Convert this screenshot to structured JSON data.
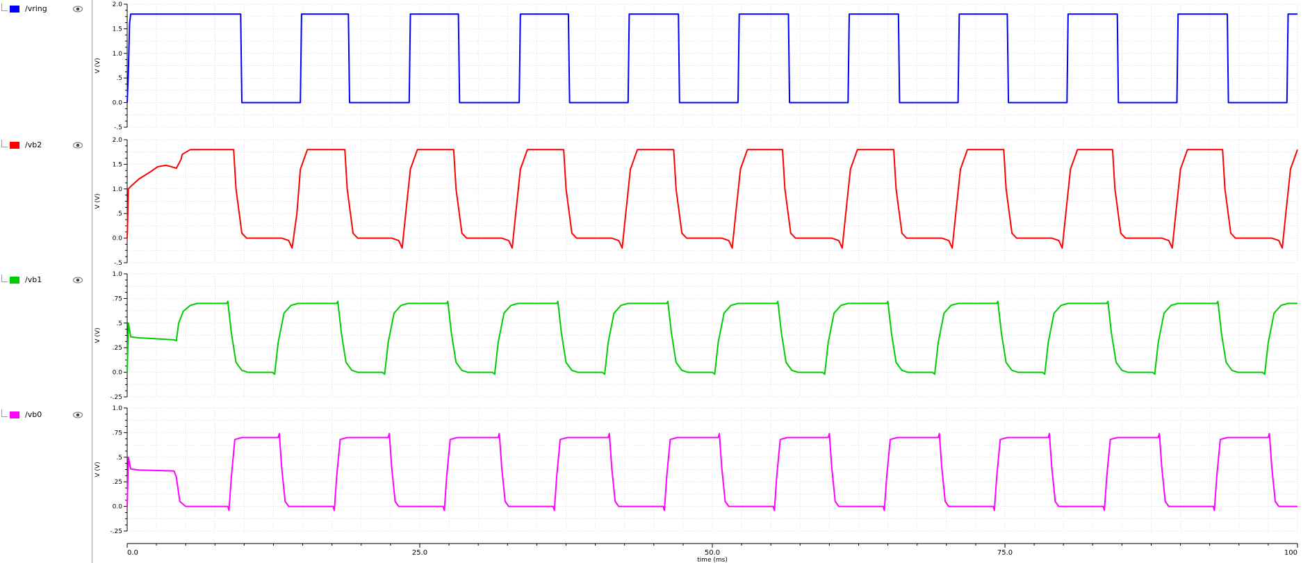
{
  "x_axis": {
    "label": "time (ms)",
    "ticks": [
      {
        "v": 0,
        "t": "0.0"
      },
      {
        "v": 25,
        "t": "25.0"
      },
      {
        "v": 50,
        "t": "50.0"
      },
      {
        "v": 75,
        "t": "75.0"
      },
      {
        "v": 100,
        "t": "100"
      }
    ]
  },
  "chart_data": [
    {
      "type": "line",
      "name": "/vring",
      "color": "#0000ff",
      "ylabel": "V (V)",
      "ylim": [
        -0.5,
        2.0
      ],
      "yticks": [
        {
          "v": 2.0,
          "t": "2.0"
        },
        {
          "v": 1.5,
          "t": "1.5"
        },
        {
          "v": 1.0,
          "t": "1.0"
        },
        {
          "v": 0.5,
          "t": ".5"
        },
        {
          "v": 0.0,
          "t": "0.0"
        },
        {
          "v": -0.5,
          "t": "-.5"
        }
      ],
      "xlim": [
        0,
        100
      ],
      "grid": true,
      "x": [
        0,
        0.1,
        0.2,
        0.3,
        0.5,
        9.7,
        9.8,
        14.8,
        14.9,
        18.9,
        19.0,
        24.1,
        24.2,
        28.3,
        28.4,
        33.5,
        33.6,
        37.7,
        37.8,
        42.8,
        42.9,
        47.1,
        47.2,
        52.2,
        52.3,
        56.5,
        56.6,
        61.6,
        61.7,
        65.9,
        66.0,
        71.0,
        71.1,
        75.2,
        75.3,
        80.3,
        80.4,
        84.6,
        84.7,
        89.7,
        89.8,
        94.0,
        94.1,
        99.1,
        99.2,
        100
      ],
      "y": [
        0.0,
        0.6,
        1.6,
        1.8,
        1.8,
        1.8,
        0.0,
        0.0,
        1.8,
        1.8,
        0.0,
        0.0,
        1.8,
        1.8,
        0.0,
        0.0,
        1.8,
        1.8,
        0.0,
        0.0,
        1.8,
        1.8,
        0.0,
        0.0,
        1.8,
        1.8,
        0.0,
        0.0,
        1.8,
        1.8,
        0.0,
        0.0,
        1.8,
        1.8,
        0.0,
        0.0,
        1.8,
        1.8,
        0.0,
        0.0,
        1.8,
        1.8,
        0.0,
        0.0,
        1.8,
        1.8
      ]
    },
    {
      "type": "line",
      "name": "/vb2",
      "color": "#ff0000",
      "ylabel": "V (V)",
      "ylim": [
        -0.5,
        2.0
      ],
      "yticks": [
        {
          "v": 2.0,
          "t": "2.0"
        },
        {
          "v": 1.5,
          "t": "1.5"
        },
        {
          "v": 1.0,
          "t": "1.0"
        },
        {
          "v": 0.5,
          "t": ".5"
        },
        {
          "v": 0.0,
          "t": "0.0"
        },
        {
          "v": -0.5,
          "t": "-.5"
        }
      ],
      "xlim": [
        0,
        100
      ],
      "grid": true,
      "x": [
        0,
        0.1,
        0.3,
        1.0,
        2.0,
        2.6,
        3.3,
        3.8,
        4.2,
        4.6,
        4.7,
        5.4,
        9.1,
        9.3,
        9.8,
        10.2,
        13.2,
        13.8,
        14.1,
        14.5,
        14.8,
        15.4,
        18.6,
        18.8,
        19.3,
        19.7,
        22.6,
        23.2,
        23.5,
        23.8,
        24.2,
        24.8,
        27.9,
        28.1,
        28.6,
        29.0,
        32.0,
        32.6,
        32.9,
        33.2,
        33.6,
        34.2,
        37.3,
        37.5,
        38.0,
        38.4,
        41.4,
        42.0,
        42.3,
        42.6,
        43.0,
        43.6,
        46.7,
        46.9,
        47.4,
        47.8,
        50.8,
        51.4,
        51.7,
        52.0,
        52.4,
        53.0,
        56.0,
        56.2,
        56.7,
        57.1,
        60.2,
        60.8,
        61.1,
        61.4,
        61.8,
        62.4,
        65.5,
        65.7,
        66.2,
        66.6,
        69.6,
        70.2,
        70.5,
        70.8,
        71.2,
        71.8,
        74.9,
        75.1,
        75.6,
        76.0,
        79.0,
        79.6,
        79.9,
        80.2,
        80.6,
        81.2,
        84.2,
        84.4,
        84.9,
        85.3,
        88.4,
        89.0,
        89.3,
        89.6,
        90.0,
        90.6,
        93.6,
        93.8,
        94.3,
        94.7,
        97.8,
        98.4,
        98.7,
        99.0,
        99.4,
        100
      ],
      "y": [
        0.0,
        1.0,
        1.05,
        1.2,
        1.35,
        1.45,
        1.48,
        1.45,
        1.42,
        1.6,
        1.7,
        1.8,
        1.8,
        1.0,
        0.1,
        0.0,
        0.0,
        -0.05,
        -0.2,
        0.5,
        1.4,
        1.8,
        1.8,
        1.0,
        0.1,
        0.0,
        0.0,
        -0.05,
        -0.2,
        0.5,
        1.4,
        1.8,
        1.8,
        1.0,
        0.1,
        0.0,
        0.0,
        -0.05,
        -0.2,
        0.5,
        1.4,
        1.8,
        1.8,
        1.0,
        0.1,
        0.0,
        0.0,
        -0.05,
        -0.2,
        0.5,
        1.4,
        1.8,
        1.8,
        1.0,
        0.1,
        0.0,
        0.0,
        -0.05,
        -0.2,
        0.5,
        1.4,
        1.8,
        1.8,
        1.0,
        0.1,
        0.0,
        0.0,
        -0.05,
        -0.2,
        0.5,
        1.4,
        1.8,
        1.8,
        1.0,
        0.1,
        0.0,
        0.0,
        -0.05,
        -0.2,
        0.5,
        1.4,
        1.8,
        1.8,
        1.0,
        0.1,
        0.0,
        0.0,
        -0.05,
        -0.2,
        0.5,
        1.4,
        1.8,
        1.8,
        1.0,
        0.1,
        0.0,
        0.0,
        -0.05,
        -0.2,
        0.5,
        1.4,
        1.8,
        1.8,
        1.0,
        0.1,
        0.0,
        0.0,
        -0.05,
        -0.2,
        0.5,
        1.4,
        1.8
      ]
    },
    {
      "type": "line",
      "name": "/vb1",
      "color": "#00cc00",
      "ylabel": "V (V)",
      "ylim": [
        -0.25,
        1.0
      ],
      "yticks": [
        {
          "v": 1.0,
          "t": "1.0"
        },
        {
          "v": 0.75,
          "t": ".75"
        },
        {
          "v": 0.5,
          "t": ".5"
        },
        {
          "v": 0.25,
          "t": ".25"
        },
        {
          "v": 0.0,
          "t": "0.0"
        },
        {
          "v": -0.25,
          "t": "-.25"
        }
      ],
      "xlim": [
        0,
        100
      ],
      "grid": true,
      "x": [
        0,
        0.1,
        0.3,
        1.0,
        4.0,
        4.2,
        4.4,
        4.8,
        5.4,
        6.0,
        8.5,
        8.6,
        8.9,
        9.3,
        9.8,
        10.3,
        12.4,
        12.6,
        12.9,
        13.4,
        14.0,
        14.6,
        17.9,
        18.0,
        18.3,
        18.7,
        19.2,
        19.7,
        21.8,
        22.0,
        22.3,
        22.8,
        23.4,
        24.0,
        27.3,
        27.4,
        27.7,
        28.1,
        28.6,
        29.1,
        31.2,
        31.4,
        31.7,
        32.2,
        32.8,
        33.4,
        36.7,
        36.8,
        37.1,
        37.5,
        38.0,
        38.5,
        40.6,
        40.8,
        41.1,
        41.6,
        42.2,
        42.8,
        46.1,
        46.2,
        46.5,
        46.9,
        47.4,
        47.9,
        50.0,
        50.2,
        50.5,
        51.0,
        51.6,
        52.2,
        55.5,
        55.6,
        55.9,
        56.3,
        56.8,
        57.3,
        59.4,
        59.6,
        59.9,
        60.4,
        61.0,
        61.6,
        64.9,
        65.0,
        65.3,
        65.7,
        66.2,
        66.7,
        68.8,
        69.0,
        69.3,
        69.8,
        70.4,
        71.0,
        74.3,
        74.4,
        74.7,
        75.1,
        75.6,
        76.1,
        78.2,
        78.4,
        78.7,
        79.2,
        79.8,
        80.4,
        83.7,
        83.8,
        84.1,
        84.5,
        85.0,
        85.5,
        87.6,
        87.8,
        88.1,
        88.6,
        89.2,
        89.8,
        93.1,
        93.2,
        93.5,
        93.9,
        94.4,
        94.9,
        97.0,
        97.2,
        97.5,
        98.0,
        98.6,
        99.2,
        100
      ],
      "y": [
        0.0,
        0.5,
        0.36,
        0.35,
        0.33,
        0.32,
        0.5,
        0.62,
        0.68,
        0.7,
        0.7,
        0.72,
        0.4,
        0.1,
        0.02,
        0.0,
        0.0,
        -0.02,
        0.3,
        0.6,
        0.68,
        0.7,
        0.7,
        0.72,
        0.4,
        0.1,
        0.02,
        0.0,
        0.0,
        -0.02,
        0.3,
        0.6,
        0.68,
        0.7,
        0.7,
        0.72,
        0.4,
        0.1,
        0.02,
        0.0,
        0.0,
        -0.02,
        0.3,
        0.6,
        0.68,
        0.7,
        0.7,
        0.72,
        0.4,
        0.1,
        0.02,
        0.0,
        0.0,
        -0.02,
        0.3,
        0.6,
        0.68,
        0.7,
        0.7,
        0.72,
        0.4,
        0.1,
        0.02,
        0.0,
        0.0,
        -0.02,
        0.3,
        0.6,
        0.68,
        0.7,
        0.7,
        0.72,
        0.4,
        0.1,
        0.02,
        0.0,
        0.0,
        -0.02,
        0.3,
        0.6,
        0.68,
        0.7,
        0.7,
        0.72,
        0.4,
        0.1,
        0.02,
        0.0,
        0.0,
        -0.02,
        0.3,
        0.6,
        0.68,
        0.7,
        0.7,
        0.72,
        0.4,
        0.1,
        0.02,
        0.0,
        0.0,
        -0.02,
        0.3,
        0.6,
        0.68,
        0.7,
        0.7,
        0.72,
        0.4,
        0.1,
        0.02,
        0.0,
        0.0,
        -0.02,
        0.3,
        0.6,
        0.68,
        0.7,
        0.7,
        0.72,
        0.4,
        0.1,
        0.02,
        0.0,
        0.0,
        -0.02,
        0.3,
        0.6,
        0.68,
        0.7,
        0.7
      ]
    },
    {
      "type": "line",
      "name": "/vb0",
      "color": "#ff00ff",
      "ylabel": "V (V)",
      "ylim": [
        -0.25,
        1.0
      ],
      "yticks": [
        {
          "v": 1.0,
          "t": "1.0"
        },
        {
          "v": 0.75,
          "t": ".75"
        },
        {
          "v": 0.5,
          "t": ".5"
        },
        {
          "v": 0.25,
          "t": ".25"
        },
        {
          "v": 0.0,
          "t": "0.0"
        },
        {
          "v": -0.25,
          "t": "-.25"
        }
      ],
      "xlim": [
        0,
        100
      ],
      "grid": true,
      "x": [
        0,
        0.1,
        0.3,
        1.0,
        4.0,
        4.2,
        4.5,
        5.0,
        8.6,
        8.7,
        8.9,
        9.2,
        9.8,
        12.9,
        13.0,
        13.2,
        13.5,
        13.8,
        17.6,
        17.7,
        17.9,
        18.2,
        18.8,
        22.3,
        22.4,
        22.6,
        22.9,
        23.2,
        27.0,
        27.1,
        27.3,
        27.6,
        28.2,
        31.7,
        31.8,
        32.0,
        32.3,
        32.6,
        36.4,
        36.5,
        36.7,
        37.0,
        37.6,
        41.1,
        41.2,
        41.4,
        41.7,
        42.0,
        45.8,
        45.9,
        46.1,
        46.4,
        47.0,
        50.5,
        50.6,
        50.8,
        51.1,
        51.4,
        55.2,
        55.3,
        55.5,
        55.8,
        56.4,
        59.9,
        60.0,
        60.2,
        60.5,
        60.8,
        64.6,
        64.7,
        64.9,
        65.2,
        65.8,
        69.3,
        69.4,
        69.6,
        69.9,
        70.2,
        74.0,
        74.1,
        74.3,
        74.6,
        75.2,
        78.7,
        78.8,
        79.0,
        79.3,
        79.6,
        83.4,
        83.5,
        83.7,
        84.0,
        84.6,
        88.1,
        88.2,
        88.4,
        88.7,
        89.0,
        92.8,
        92.9,
        93.1,
        93.4,
        94.0,
        97.5,
        97.6,
        97.8,
        98.1,
        98.4,
        100
      ],
      "y": [
        0.0,
        0.5,
        0.38,
        0.37,
        0.36,
        0.3,
        0.05,
        0.0,
        0.0,
        -0.04,
        0.3,
        0.68,
        0.7,
        0.7,
        0.74,
        0.4,
        0.05,
        0.0,
        0.0,
        -0.04,
        0.3,
        0.68,
        0.7,
        0.7,
        0.74,
        0.4,
        0.05,
        0.0,
        0.0,
        -0.04,
        0.3,
        0.68,
        0.7,
        0.7,
        0.74,
        0.4,
        0.05,
        0.0,
        0.0,
        -0.04,
        0.3,
        0.68,
        0.7,
        0.7,
        0.74,
        0.4,
        0.05,
        0.0,
        0.0,
        -0.04,
        0.3,
        0.68,
        0.7,
        0.7,
        0.74,
        0.4,
        0.05,
        0.0,
        0.0,
        -0.04,
        0.3,
        0.68,
        0.7,
        0.7,
        0.74,
        0.4,
        0.05,
        0.0,
        0.0,
        -0.04,
        0.3,
        0.68,
        0.7,
        0.7,
        0.74,
        0.4,
        0.05,
        0.0,
        0.0,
        -0.04,
        0.3,
        0.68,
        0.7,
        0.7,
        0.74,
        0.4,
        0.05,
        0.0,
        0.0,
        -0.04,
        0.3,
        0.68,
        0.7,
        0.7,
        0.74,
        0.4,
        0.05,
        0.0,
        0.0,
        -0.04,
        0.3,
        0.68,
        0.7,
        0.7,
        0.74,
        0.4,
        0.05,
        0.0,
        0.0
      ]
    }
  ]
}
